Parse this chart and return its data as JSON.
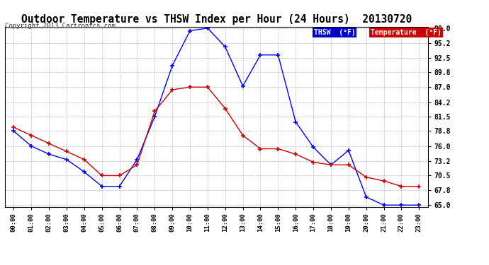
{
  "title": "Outdoor Temperature vs THSW Index per Hour (24 Hours)  20130720",
  "copyright": "Copyright 2013 Cartronics.com",
  "hours": [
    "00:00",
    "01:00",
    "02:00",
    "03:00",
    "04:00",
    "05:00",
    "06:00",
    "07:00",
    "08:00",
    "09:00",
    "10:00",
    "11:00",
    "12:00",
    "13:00",
    "14:00",
    "15:00",
    "16:00",
    "17:00",
    "18:00",
    "19:00",
    "20:00",
    "21:00",
    "22:00",
    "23:00"
  ],
  "thsw": [
    78.8,
    76.0,
    74.5,
    73.5,
    71.2,
    68.5,
    68.5,
    73.5,
    81.5,
    91.0,
    97.5,
    98.0,
    94.5,
    87.2,
    93.0,
    93.0,
    80.5,
    75.8,
    72.5,
    75.2,
    66.5,
    65.0,
    65.0,
    65.0
  ],
  "temperature": [
    79.5,
    78.0,
    76.5,
    75.0,
    73.5,
    70.5,
    70.5,
    72.5,
    82.5,
    86.5,
    87.0,
    87.0,
    83.0,
    78.0,
    75.5,
    75.5,
    74.5,
    73.0,
    72.5,
    72.5,
    70.2,
    69.5,
    68.5,
    68.5
  ],
  "ylim_min": 65.0,
  "ylim_max": 98.0,
  "yticks": [
    65.0,
    67.8,
    70.5,
    73.2,
    76.0,
    78.8,
    81.5,
    84.2,
    87.0,
    89.8,
    92.5,
    95.2,
    98.0
  ],
  "thsw_color": "#0000ff",
  "temp_color": "#cc0000",
  "background_color": "#ffffff",
  "grid_color": "#bbbbbb",
  "title_fontsize": 10.5,
  "copyright_fontsize": 6.5,
  "legend_thsw_label": "THSW  (°F)",
  "legend_temp_label": "Temperature  (°F)",
  "legend_thsw_bg": "#0000cc",
  "legend_temp_bg": "#cc0000",
  "legend_text_color": "#ffffff"
}
